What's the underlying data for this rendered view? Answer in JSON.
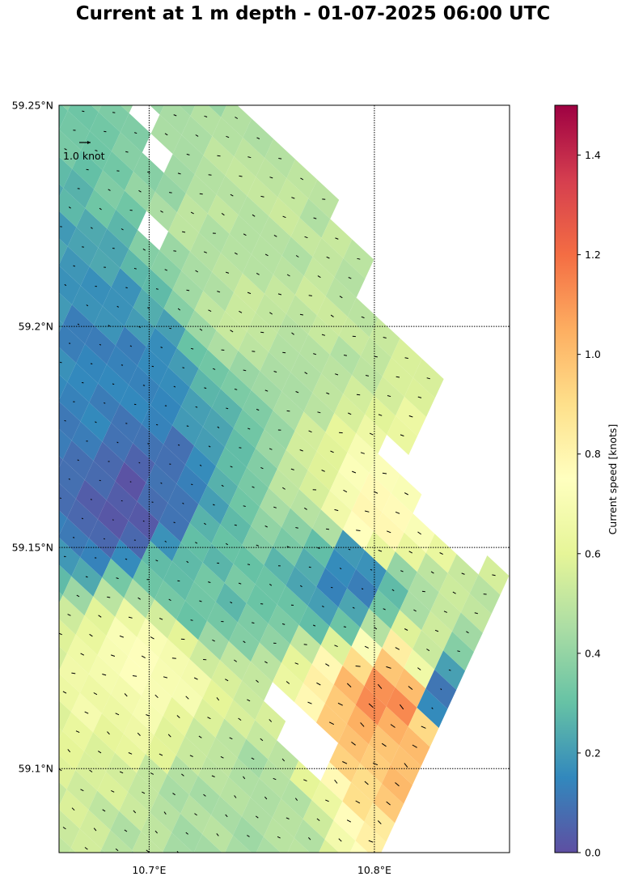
{
  "chart_data": {
    "type": "heatmap",
    "title": "Current at 1 m depth - 01-07-2025 06:00 UTC",
    "x_axis": {
      "range": [
        10.66,
        10.86
      ],
      "ticks": [
        10.7,
        10.8
      ],
      "tick_labels": [
        "10.7°E",
        "10.8°E"
      ]
    },
    "y_axis": {
      "range": [
        59.081,
        59.25
      ],
      "ticks": [
        59.1,
        59.15,
        59.2,
        59.25
      ],
      "tick_labels": [
        "59.1°N",
        "59.15°N",
        "59.2°N",
        "59.25°N"
      ]
    },
    "grid": "dotted at tick positions",
    "quiver_key": {
      "label": "1.0 knot",
      "value": 1.0,
      "placement": "top-left"
    },
    "colorbar": {
      "label": "Current speed [knots]",
      "range": [
        0,
        1.5
      ],
      "ticks": [
        0.0,
        0.2,
        0.4,
        0.6,
        0.8,
        1.0,
        1.2,
        1.4
      ],
      "tick_labels": [
        "0.0",
        "0.2",
        "0.4",
        "0.6",
        "0.8",
        "1.0",
        "1.2",
        "1.4"
      ],
      "colormap": "Spectral_r",
      "stops": [
        "#5e4fa2",
        "#3288bd",
        "#66c2a5",
        "#abdda4",
        "#e6f598",
        "#ffffbf",
        "#fee08b",
        "#fdae61",
        "#f46d43",
        "#d53e4f",
        "#9e0142"
      ]
    },
    "grid_cells": {
      "note": "rotated model grid, approximately 0.16-0.45 knots offshore, up to about 1.1 knots in the southeast channel",
      "columns": 20,
      "rows": 46,
      "lon0": 10.662,
      "lat0": 59.262,
      "dlon_col": 0.0097,
      "dlat_col": -0.0046,
      "dlon_row": 0.0039,
      "dlat_row": 0.0043
    },
    "speed_samples": [
      {
        "lon": 10.69,
        "lat": 59.16,
        "speed": 0.05
      },
      {
        "lon": 10.68,
        "lat": 59.19,
        "speed": 0.15
      },
      {
        "lon": 10.75,
        "lat": 59.21,
        "speed": 0.5
      },
      {
        "lon": 10.7,
        "lat": 59.125,
        "speed": 0.7
      },
      {
        "lon": 10.8,
        "lat": 59.155,
        "speed": 0.78
      },
      {
        "lon": 10.81,
        "lat": 59.115,
        "speed": 1.12
      },
      {
        "lon": 10.82,
        "lat": 59.105,
        "speed": 1.02
      },
      {
        "lon": 10.79,
        "lat": 59.145,
        "speed": 0.15
      },
      {
        "lon": 10.83,
        "lat": 59.115,
        "speed": 0.12
      },
      {
        "lon": 10.72,
        "lat": 59.14,
        "speed": 0.3
      },
      {
        "lon": 10.74,
        "lat": 59.09,
        "speed": 0.45
      }
    ]
  }
}
